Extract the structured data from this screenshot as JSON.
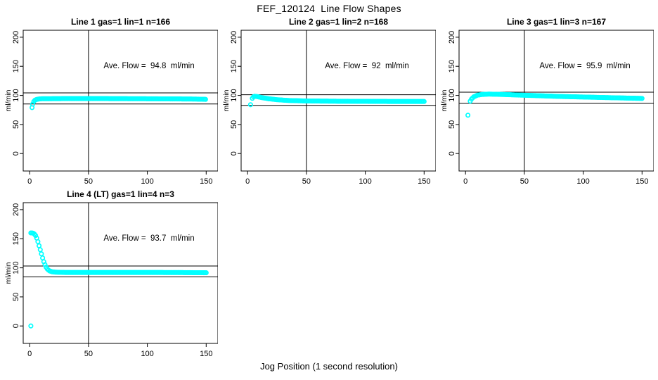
{
  "title": "FEF_120124  Line Flow Shapes",
  "xlabel": "Jog Position (1 second resolution)",
  "colors": {
    "marker": "#00FFFF",
    "axis": "#000000",
    "background": "#FFFFFF"
  },
  "chart_data": {
    "type": "scatter",
    "title": "FEF_120124  Line Flow Shapes",
    "xlabel": "Jog Position (1 second resolution)",
    "marker": "open-circle",
    "xlim": [
      -5.5,
      160
    ],
    "ylim": [
      -30,
      212
    ],
    "xticks": [
      0,
      50,
      100,
      150
    ],
    "yticks": [
      0,
      50,
      100,
      150,
      200
    ],
    "vline_x": 50,
    "grid": false,
    "panels": [
      {
        "title": "Line 1 gas=1 lin=1 n=166",
        "annotation": "Ave. Flow =  94.8  ml/min",
        "ave_flow": 94.8,
        "n": 166,
        "ylabel": "ml/min",
        "hlines": [
          104.3,
          85.3
        ],
        "outliers": [
          [
            2,
            79
          ]
        ],
        "series_keypoints": [
          [
            2.5,
            85
          ],
          [
            3,
            88
          ],
          [
            4,
            91
          ],
          [
            5,
            92.5
          ],
          [
            7,
            93.5
          ],
          [
            10,
            94.2
          ],
          [
            30,
            94.5
          ],
          [
            60,
            94.5
          ],
          [
            100,
            94.2
          ],
          [
            140,
            93.7
          ],
          [
            150,
            93.2
          ]
        ],
        "x_step": 1
      },
      {
        "title": "Line 2 gas=1 lin=2 n=168",
        "annotation": "Ave. Flow =  92  ml/min",
        "ave_flow": 92,
        "n": 168,
        "ylabel": "ml/min",
        "hlines": [
          101.2,
          82.8
        ],
        "outliers": [
          [
            2.5,
            84
          ]
        ],
        "series_keypoints": [
          [
            4,
            95
          ],
          [
            5,
            97.5
          ],
          [
            6,
            98.5
          ],
          [
            8,
            98
          ],
          [
            12,
            96.2
          ],
          [
            18,
            94.2
          ],
          [
            25,
            92.6
          ],
          [
            35,
            91.2
          ],
          [
            50,
            90.4
          ],
          [
            80,
            89.9
          ],
          [
            120,
            89.6
          ],
          [
            150,
            89.5
          ]
        ],
        "x_step": 1
      },
      {
        "title": "Line 3 gas=1 lin=3 n=167",
        "annotation": "Ave. Flow =  95.9  ml/min",
        "ave_flow": 95.9,
        "n": 167,
        "ylabel": "ml/min",
        "hlines": [
          105.5,
          86.3
        ],
        "outliers": [
          [
            2,
            66
          ]
        ],
        "series_keypoints": [
          [
            4,
            90
          ],
          [
            5,
            93.5
          ],
          [
            7,
            97.5
          ],
          [
            10,
            100.3
          ],
          [
            14,
            101.6
          ],
          [
            20,
            102.2
          ],
          [
            30,
            101.7
          ],
          [
            45,
            100.6
          ],
          [
            60,
            99.6
          ],
          [
            80,
            98.2
          ],
          [
            100,
            97.2
          ],
          [
            120,
            96.2
          ],
          [
            150,
            94.8
          ]
        ],
        "x_step": 1
      },
      {
        "title": "Line 4 (LT) gas=1 lin=4 n=3",
        "annotation": "Ave. Flow =  93.7  ml/min",
        "ave_flow": 93.7,
        "n": 3,
        "ylabel": "ml/min",
        "hlines": [
          103.1,
          84.3
        ],
        "outliers": [
          [
            1,
            0
          ]
        ],
        "series_keypoints": [
          [
            1,
            160
          ],
          [
            2,
            160
          ],
          [
            3,
            159.5
          ],
          [
            4,
            158
          ],
          [
            5,
            155.5
          ],
          [
            6,
            151
          ],
          [
            7,
            145
          ],
          [
            8,
            138
          ],
          [
            9,
            131
          ],
          [
            10,
            124
          ],
          [
            11,
            117
          ],
          [
            12,
            110.5
          ],
          [
            13,
            105.5
          ],
          [
            14,
            101
          ],
          [
            15,
            98
          ],
          [
            16,
            96
          ],
          [
            17,
            94.5
          ],
          [
            19,
            93.2
          ],
          [
            22,
            92.5
          ],
          [
            30,
            92
          ],
          [
            60,
            92
          ],
          [
            100,
            92
          ],
          [
            130,
            91.8
          ],
          [
            150,
            91.5
          ]
        ],
        "x_step": 1
      }
    ]
  }
}
